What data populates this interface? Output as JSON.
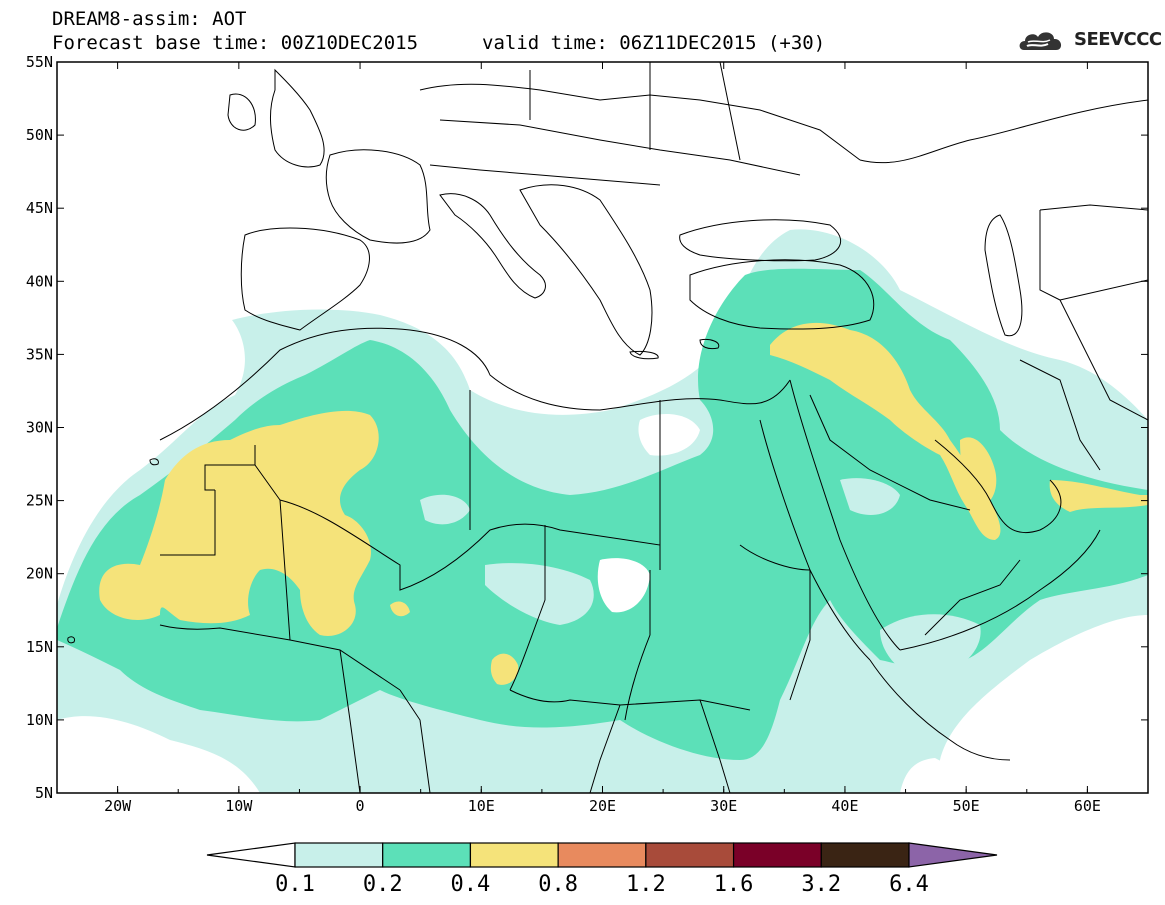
{
  "header": {
    "title": "DREAM8-assim: AOT",
    "base_time": "Forecast base time: 00Z10DEC2015",
    "valid_time": "valid time: 06Z11DEC2015 (+30)",
    "logo_text": "SEEVCCC"
  },
  "map": {
    "lon_range": [
      -25,
      65
    ],
    "lat_range": [
      5,
      55
    ],
    "lat_labels": [
      "55N",
      "50N",
      "45N",
      "40N",
      "35N",
      "30N",
      "25N",
      "20N",
      "15N",
      "10N",
      "5N"
    ],
    "lon_labels": [
      "20W",
      "10W",
      "0",
      "10E",
      "20E",
      "30E",
      "40E",
      "50E",
      "60E"
    ],
    "boundary_color": "#000000"
  },
  "legend": {
    "levels": [
      "0.1",
      "0.2",
      "0.4",
      "0.8",
      "1.2",
      "1.6",
      "3.2",
      "6.4"
    ],
    "colors": [
      "#ffffff",
      "#c8f0ea",
      "#5ce0b8",
      "#f5e37a",
      "#e88a5e",
      "#a84b3a",
      "#7a0028",
      "#3a2414",
      "#8c64a8"
    ]
  }
}
